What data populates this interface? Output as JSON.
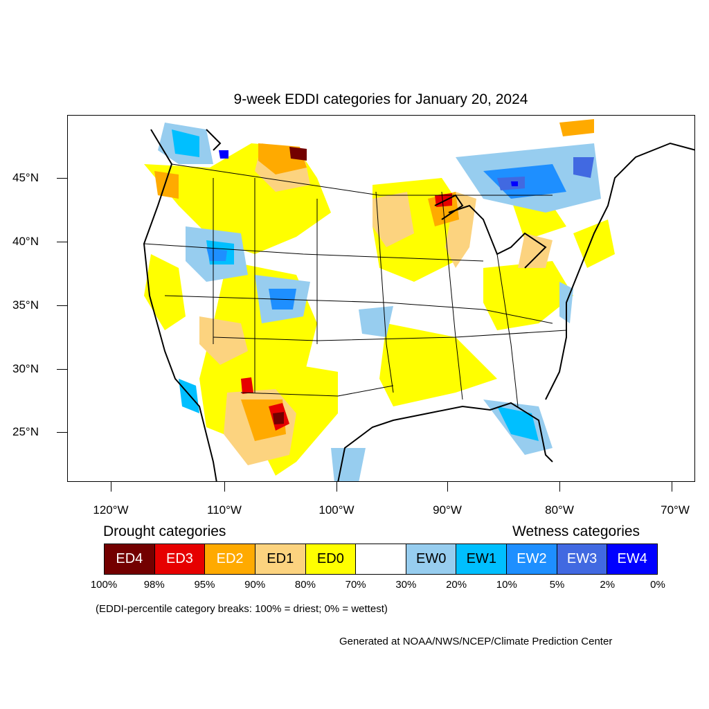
{
  "title": "9-week EDDI categories for January 20, 2024",
  "lat_labels": [
    "45°N",
    "40°N",
    "35°N",
    "30°N",
    "25°N"
  ],
  "lon_labels": [
    "120°W",
    "110°W",
    "100°W",
    "90°W",
    "80°W",
    "70°W"
  ],
  "drought_heading": "Drought categories",
  "wetness_heading": "Wetness categories",
  "categories": [
    {
      "label": "ED4",
      "color": "#730000",
      "text_color": "#ffffff"
    },
    {
      "label": "ED3",
      "color": "#e60000",
      "text_color": "#ffffff"
    },
    {
      "label": "ED2",
      "color": "#ffaa00",
      "text_color": "#ffffff"
    },
    {
      "label": "ED1",
      "color": "#fcd37f",
      "text_color": "#000000"
    },
    {
      "label": "ED0",
      "color": "#ffff00",
      "text_color": "#000000"
    },
    {
      "label": "",
      "color": "#ffffff",
      "text_color": "#000000"
    },
    {
      "label": "EW0",
      "color": "#97cdef",
      "text_color": "#000000"
    },
    {
      "label": "EW1",
      "color": "#00bfff",
      "text_color": "#000000"
    },
    {
      "label": "EW2",
      "color": "#1e8fff",
      "text_color": "#ffffff"
    },
    {
      "label": "EW3",
      "color": "#4169e1",
      "text_color": "#ffffff"
    },
    {
      "label": "EW4",
      "color": "#0000ff",
      "text_color": "#ffffff"
    }
  ],
  "percentiles": [
    "100%",
    "98%",
    "95%",
    "90%",
    "80%",
    "70%",
    "30%",
    "20%",
    "10%",
    "5%",
    "2%",
    "0%"
  ],
  "note": "(EDDI-percentile category breaks: 100% = driest; 0% = wettest)",
  "credit": "Generated at NOAA/NWS/NCEP/Climate Prediction Center"
}
